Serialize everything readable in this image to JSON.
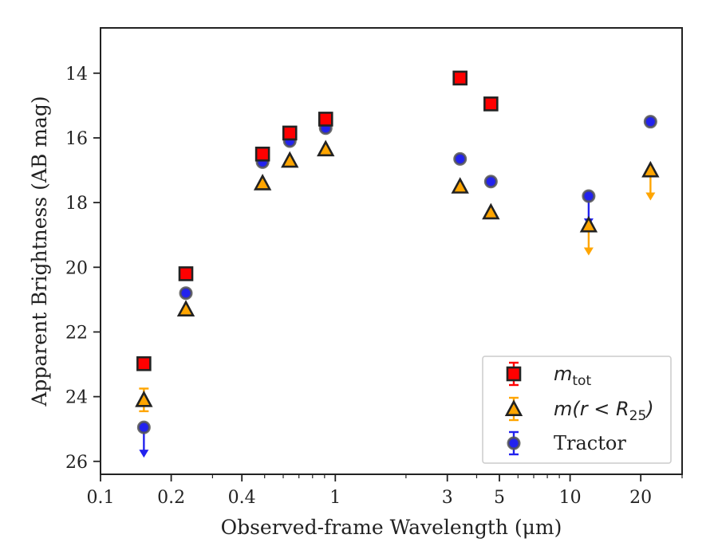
{
  "chart_data": {
    "type": "scatter",
    "xlabel": "Observed-frame Wavelength (μm)",
    "ylabel": "Apparent Brightness (AB mag)",
    "x_scale": "log",
    "xlim": [
      0.1,
      30
    ],
    "ylim": [
      26.4,
      12.6
    ],
    "y_inverted": true,
    "grid": false,
    "legend_position": "lower-right",
    "x_ticks": [
      {
        "value": 0.1,
        "label": "0.1"
      },
      {
        "value": 0.2,
        "label": "0.2"
      },
      {
        "value": 0.4,
        "label": "0.4"
      },
      {
        "value": 1,
        "label": "1"
      },
      {
        "value": 3,
        "label": "3"
      },
      {
        "value": 5,
        "label": "5"
      },
      {
        "value": 10,
        "label": "10"
      },
      {
        "value": 20,
        "label": "20"
      }
    ],
    "y_ticks": [
      {
        "value": 14,
        "label": "14"
      },
      {
        "value": 16,
        "label": "16"
      },
      {
        "value": 18,
        "label": "18"
      },
      {
        "value": 20,
        "label": "20"
      },
      {
        "value": 22,
        "label": "22"
      },
      {
        "value": 24,
        "label": "24"
      },
      {
        "value": 26,
        "label": "26"
      }
    ],
    "series": [
      {
        "name": "m_tot",
        "legend_main": "m",
        "legend_sub": "tot",
        "marker": "square",
        "color": "#ff0000",
        "points": [
          {
            "x": 0.153,
            "y": 22.98
          },
          {
            "x": 0.231,
            "y": 20.2
          },
          {
            "x": 0.49,
            "y": 16.5
          },
          {
            "x": 0.64,
            "y": 15.85
          },
          {
            "x": 0.91,
            "y": 15.42
          },
          {
            "x": 3.4,
            "y": 14.15
          },
          {
            "x": 4.6,
            "y": 14.95
          }
        ]
      },
      {
        "name": "m(r<R_25)",
        "legend_main": "m(r < R",
        "legend_sub": "25",
        "legend_tail": ")",
        "marker": "triangle",
        "color": "#ffa500",
        "points": [
          {
            "x": 0.153,
            "y": 24.1,
            "err": 0.35
          },
          {
            "x": 0.231,
            "y": 21.3
          },
          {
            "x": 0.49,
            "y": 17.4
          },
          {
            "x": 0.64,
            "y": 16.7
          },
          {
            "x": 0.91,
            "y": 16.35
          },
          {
            "x": 3.4,
            "y": 17.5
          },
          {
            "x": 4.6,
            "y": 18.3
          },
          {
            "x": 12.0,
            "y": 18.7,
            "upper_limit": true
          },
          {
            "x": 22.0,
            "y": 17.0,
            "upper_limit": true
          }
        ]
      },
      {
        "name": "Tractor",
        "legend_main": "Tractor",
        "marker": "circle",
        "color": "#2222ee",
        "points": [
          {
            "x": 0.153,
            "y": 24.95,
            "upper_limit": true
          },
          {
            "x": 0.231,
            "y": 20.8
          },
          {
            "x": 0.49,
            "y": 16.75
          },
          {
            "x": 0.64,
            "y": 16.1
          },
          {
            "x": 0.91,
            "y": 15.7
          },
          {
            "x": 3.4,
            "y": 16.65
          },
          {
            "x": 4.6,
            "y": 17.35
          },
          {
            "x": 12.0,
            "y": 17.8,
            "upper_limit": true
          },
          {
            "x": 22.0,
            "y": 15.5
          }
        ]
      }
    ]
  }
}
